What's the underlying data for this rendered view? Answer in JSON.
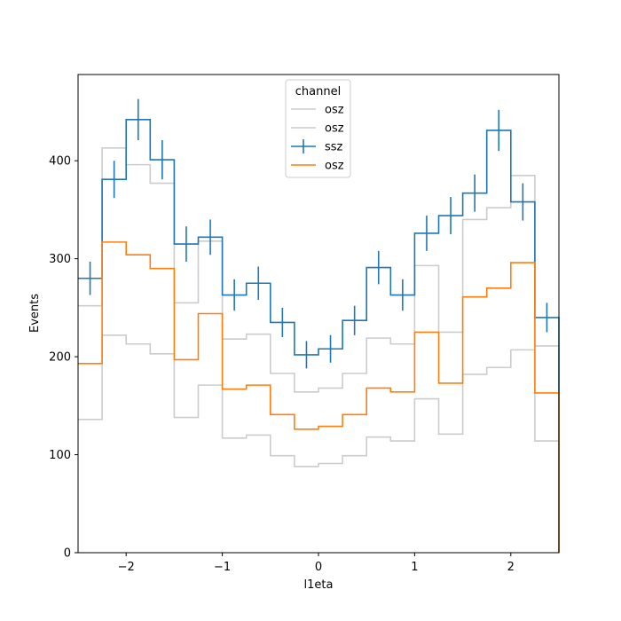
{
  "chart_data": {
    "type": "step-histogram",
    "xlabel": "l1eta",
    "ylabel": "Events",
    "xlim": [
      -2.5,
      2.5
    ],
    "ylim": [
      0,
      488
    ],
    "xticks": [
      -2,
      -1,
      0,
      1,
      2
    ],
    "xtick_labels": [
      "−2",
      "−1",
      "0",
      "1",
      "2"
    ],
    "yticks": [
      0,
      100,
      200,
      300,
      400
    ],
    "yticks_labels": [
      "0",
      "100",
      "200",
      "300",
      "400"
    ],
    "bin_edges": [
      -2.5,
      -2.25,
      -2.0,
      -1.75,
      -1.5,
      -1.25,
      -1.0,
      -0.75,
      -0.5,
      -0.25,
      0.0,
      0.25,
      0.5,
      0.75,
      1.0,
      1.25,
      1.5,
      1.75,
      2.0,
      2.25,
      2.5
    ],
    "legend": {
      "title": "channel",
      "placement": "upper-center"
    },
    "series": [
      {
        "name": "osz",
        "color": "#cccccc",
        "style": "step",
        "values": [
          252,
          413,
          396,
          377,
          255,
          318,
          218,
          223,
          183,
          164,
          168,
          183,
          219,
          213,
          293,
          225,
          340,
          352,
          385,
          211
        ]
      },
      {
        "name": "osz",
        "color": "#cccccc",
        "style": "step",
        "values": [
          136,
          222,
          213,
          203,
          138,
          171,
          117,
          120,
          99,
          88,
          91,
          99,
          118,
          114,
          157,
          121,
          182,
          189,
          207,
          114
        ]
      },
      {
        "name": "ssz",
        "color": "#1f77b4",
        "style": "step-errorbar",
        "values": [
          280,
          381,
          442,
          401,
          315,
          322,
          263,
          275,
          235,
          202,
          208,
          237,
          291,
          263,
          326,
          344,
          367,
          431,
          358,
          240
        ],
        "errors": [
          17,
          19,
          21,
          20,
          18,
          18,
          16,
          17,
          15,
          14,
          14,
          15,
          17,
          16,
          18,
          19,
          19,
          21,
          19,
          15
        ]
      },
      {
        "name": "osz",
        "color": "#ff7f0e",
        "style": "step",
        "values": [
          193,
          317,
          304,
          290,
          197,
          244,
          167,
          171,
          141,
          126,
          129,
          141,
          168,
          164,
          225,
          173,
          261,
          270,
          296,
          163
        ]
      }
    ]
  }
}
